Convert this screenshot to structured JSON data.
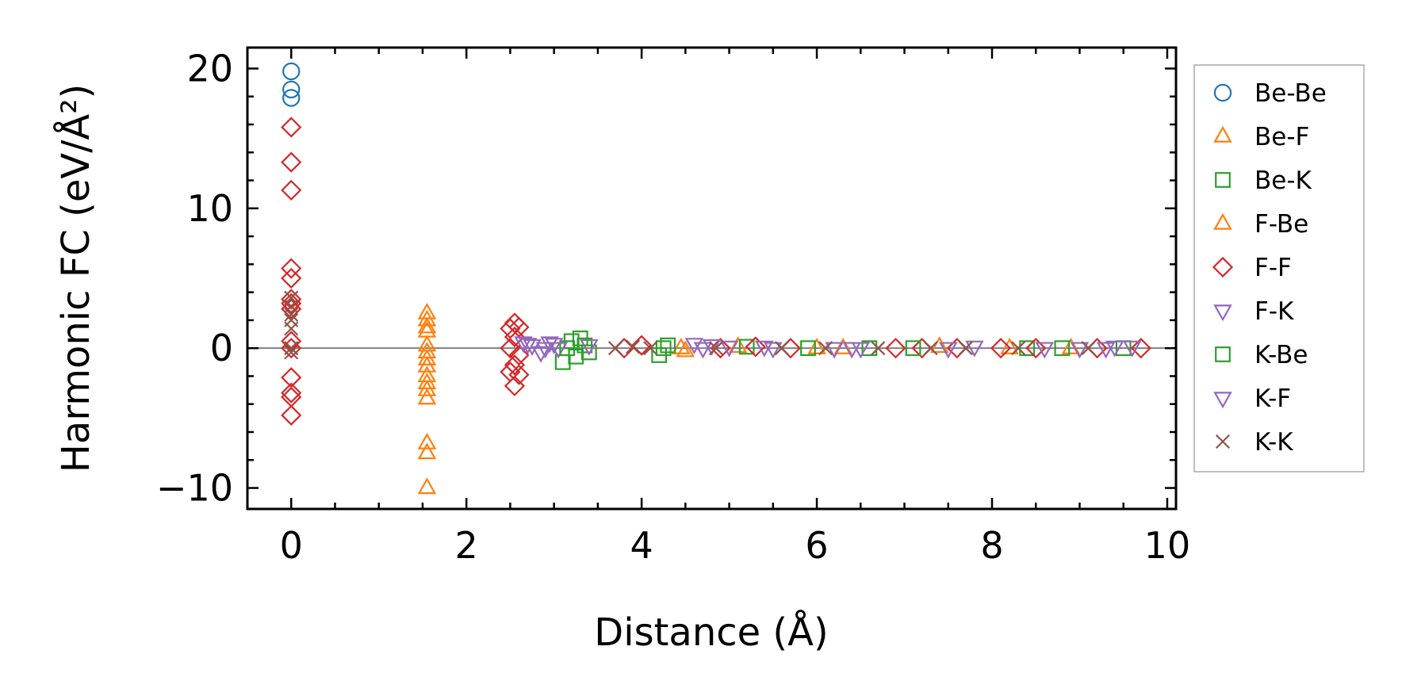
{
  "chart_data": {
    "type": "scatter",
    "xlabel": "Distance (Å)",
    "ylabel": "Harmonic FC (eV/Å²)",
    "xlim": [
      -0.5,
      10.1
    ],
    "ylim": [
      -11.5,
      21.5
    ],
    "x_ticks": [
      0,
      2,
      4,
      6,
      8,
      10
    ],
    "x_tick_labels": [
      "0",
      "2",
      "4",
      "6",
      "8",
      "10"
    ],
    "y_ticks": [
      -10,
      0,
      10,
      20
    ],
    "y_tick_labels": [
      "−10",
      "0",
      "10",
      "20"
    ],
    "zero_line": true,
    "grid": false,
    "legend_position": "outside-right",
    "series": [
      {
        "name": "Be-Be",
        "marker": "circle",
        "color": "#1f77b4",
        "points": [
          [
            0,
            19.8
          ],
          [
            0,
            18.5
          ],
          [
            0,
            17.9
          ]
        ]
      },
      {
        "name": "Be-F",
        "marker": "triangle-up",
        "color": "#ff7f0e",
        "points": [
          [
            1.55,
            2.5
          ],
          [
            1.55,
            2.0
          ],
          [
            1.55,
            1.2
          ],
          [
            1.55,
            0.2
          ],
          [
            1.55,
            -0.3
          ],
          [
            1.55,
            -1.3
          ],
          [
            1.55,
            -2.5
          ],
          [
            1.55,
            -3.0
          ],
          [
            1.55,
            -3.6
          ],
          [
            1.55,
            -6.8
          ],
          [
            1.55,
            -7.5
          ],
          [
            1.55,
            -10.0
          ],
          [
            4.45,
            0.0
          ],
          [
            5.1,
            0.1
          ],
          [
            6.3,
            0.0
          ],
          [
            7.4,
            0.1
          ],
          [
            8.9,
            0.0
          ]
        ]
      },
      {
        "name": "Be-K",
        "marker": "square",
        "color": "#2ca02c",
        "points": [
          [
            3.1,
            -1.0
          ],
          [
            3.2,
            0.5
          ],
          [
            3.25,
            -0.6
          ],
          [
            3.35,
            0.2
          ],
          [
            3.4,
            -0.3
          ],
          [
            4.2,
            -0.5
          ],
          [
            4.3,
            0.2
          ],
          [
            5.2,
            0.1
          ],
          [
            6.6,
            0.0
          ],
          [
            8.4,
            0.0
          ],
          [
            8.8,
            0.0
          ],
          [
            9.5,
            0.0
          ]
        ]
      },
      {
        "name": "F-Be",
        "marker": "triangle-up",
        "color": "#ff7f0e",
        "points": [
          [
            1.55,
            1.5
          ],
          [
            1.55,
            -0.8
          ],
          [
            1.55,
            -2.0
          ],
          [
            4.5,
            -0.2
          ],
          [
            6.0,
            0.0
          ],
          [
            8.2,
            0.0
          ]
        ]
      },
      {
        "name": "F-F",
        "marker": "diamond",
        "color": "#d62728",
        "points": [
          [
            0,
            15.8
          ],
          [
            0,
            13.3
          ],
          [
            0,
            11.3
          ],
          [
            0,
            5.7
          ],
          [
            0,
            5.0
          ],
          [
            0,
            3.5
          ],
          [
            0,
            3.2
          ],
          [
            0,
            2.8
          ],
          [
            0,
            0.5
          ],
          [
            0,
            0.0
          ],
          [
            0,
            -2.1
          ],
          [
            0,
            -3.2
          ],
          [
            0,
            -3.5
          ],
          [
            0,
            -4.8
          ],
          [
            2.55,
            1.8
          ],
          [
            2.5,
            1.4
          ],
          [
            2.6,
            1.5
          ],
          [
            2.55,
            0.8
          ],
          [
            2.5,
            0.0
          ],
          [
            2.6,
            -0.5
          ],
          [
            2.55,
            -1.2
          ],
          [
            2.5,
            -1.7
          ],
          [
            2.6,
            -1.9
          ],
          [
            2.55,
            -2.7
          ],
          [
            3.8,
            0.0
          ],
          [
            4.0,
            0.2
          ],
          [
            4.9,
            0.0
          ],
          [
            5.3,
            0.1
          ],
          [
            5.7,
            0.0
          ],
          [
            6.9,
            0.0
          ],
          [
            7.2,
            0.0
          ],
          [
            7.6,
            0.0
          ],
          [
            8.1,
            0.0
          ],
          [
            8.5,
            0.0
          ],
          [
            9.2,
            0.0
          ],
          [
            9.7,
            0.0
          ]
        ]
      },
      {
        "name": "F-K",
        "marker": "triangle-down",
        "color": "#9467bd",
        "points": [
          [
            2.65,
            0.4
          ],
          [
            2.75,
            0.2
          ],
          [
            2.85,
            -0.3
          ],
          [
            2.95,
            0.4
          ],
          [
            3.05,
            0.0
          ],
          [
            3.4,
            0.2
          ],
          [
            4.6,
            0.3
          ],
          [
            4.8,
            0.2
          ],
          [
            5.0,
            0.1
          ],
          [
            5.5,
            0.0
          ],
          [
            6.2,
            0.0
          ],
          [
            6.5,
            0.0
          ],
          [
            7.8,
            0.1
          ],
          [
            9.0,
            0.0
          ],
          [
            9.4,
            0.1
          ],
          [
            9.6,
            0.1
          ]
        ]
      },
      {
        "name": "K-Be",
        "marker": "square",
        "color": "#2ca02c",
        "points": [
          [
            3.15,
            0.0
          ],
          [
            3.3,
            0.7
          ],
          [
            4.25,
            0.0
          ],
          [
            5.9,
            0.0
          ],
          [
            7.1,
            0.0
          ]
        ]
      },
      {
        "name": "K-F",
        "marker": "triangle-down",
        "color": "#9467bd",
        "points": [
          [
            2.7,
            0.3
          ],
          [
            2.9,
            0.0
          ],
          [
            3.0,
            0.3
          ],
          [
            4.7,
            0.0
          ],
          [
            5.4,
            0.1
          ],
          [
            6.4,
            0.0
          ],
          [
            7.5,
            0.0
          ],
          [
            8.6,
            0.0
          ],
          [
            9.3,
            0.0
          ]
        ]
      },
      {
        "name": "K-K",
        "marker": "x",
        "color": "#8c564b",
        "points": [
          [
            0,
            3.6
          ],
          [
            0,
            3.0
          ],
          [
            0,
            2.4
          ],
          [
            0,
            2.0
          ],
          [
            0,
            1.4
          ],
          [
            0,
            0.0
          ],
          [
            0,
            -0.3
          ],
          [
            3.7,
            0.0
          ],
          [
            3.9,
            0.1
          ],
          [
            4.1,
            0.0
          ],
          [
            4.85,
            0.0
          ],
          [
            5.6,
            0.0
          ],
          [
            6.1,
            0.0
          ],
          [
            6.7,
            0.0
          ],
          [
            7.3,
            0.0
          ],
          [
            7.7,
            0.0
          ],
          [
            8.3,
            0.0
          ],
          [
            9.1,
            0.0
          ]
        ]
      }
    ]
  }
}
